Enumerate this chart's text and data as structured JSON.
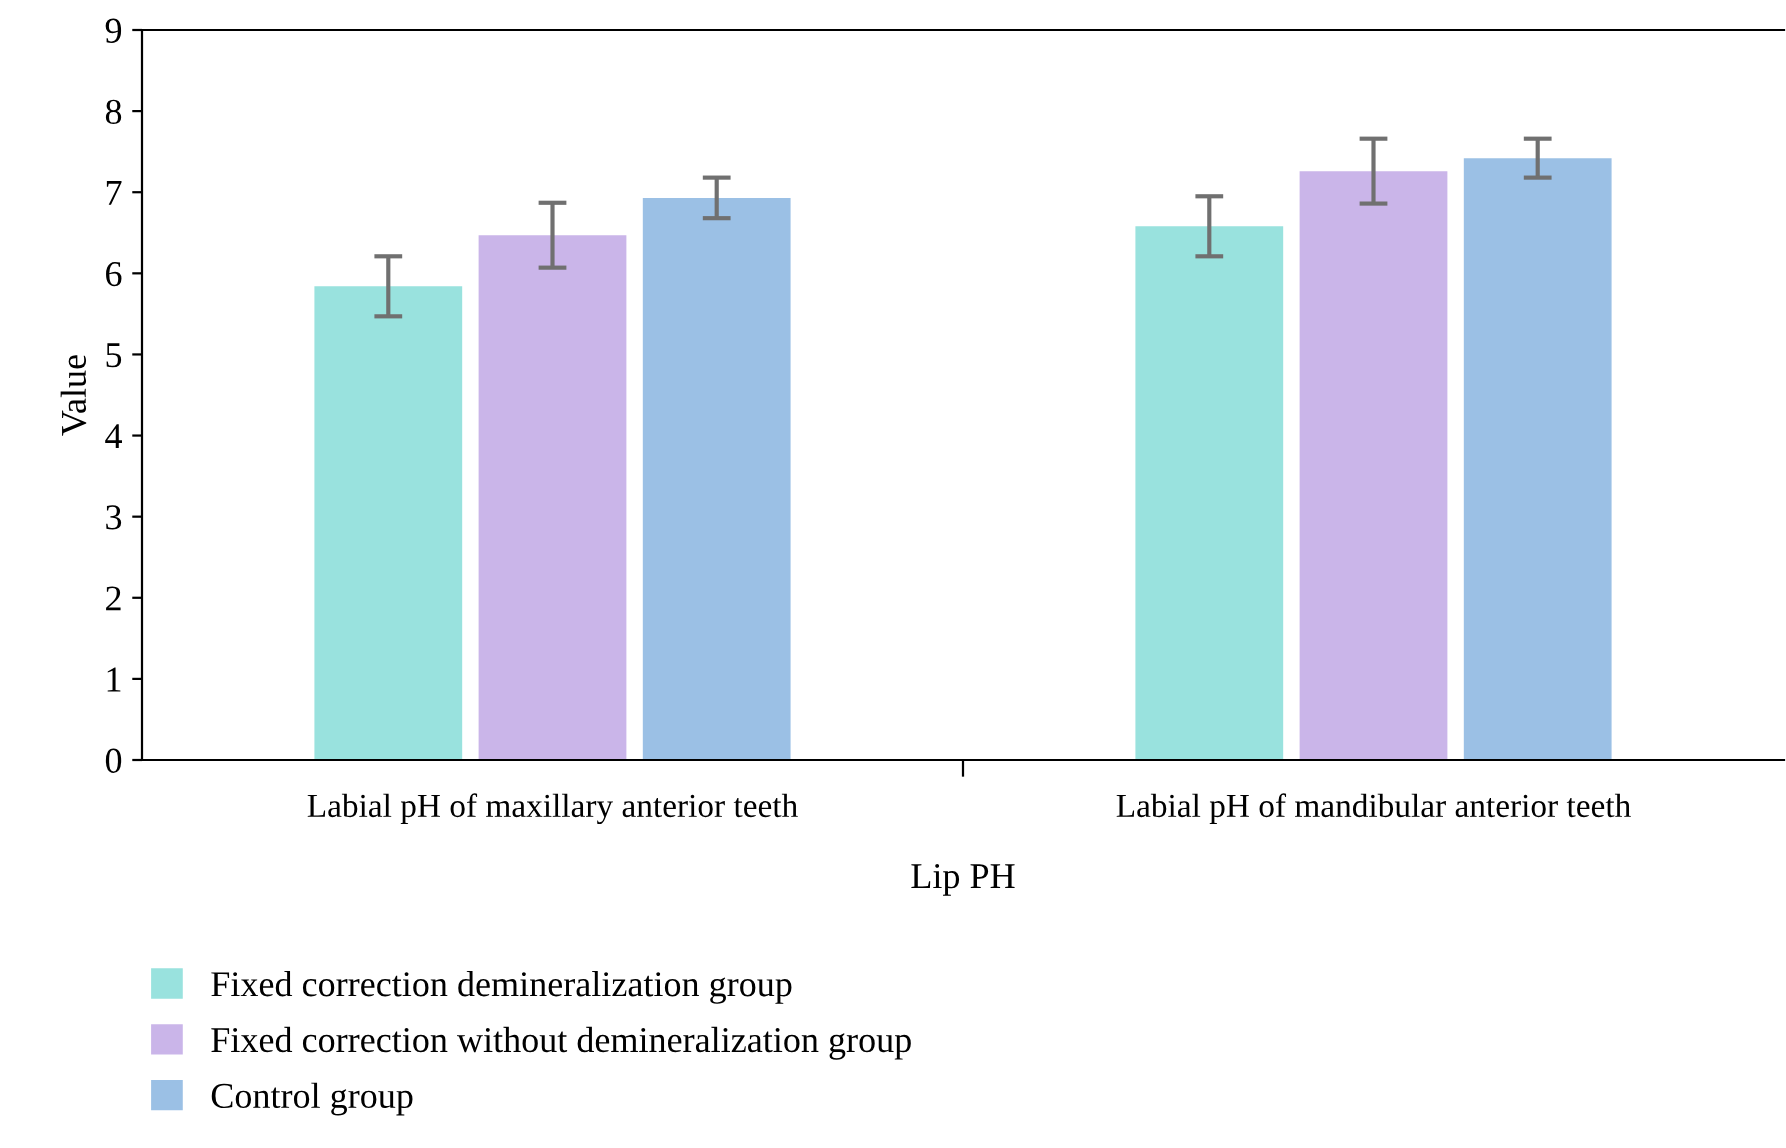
{
  "chart_data": {
    "type": "bar",
    "xlabel": "Lip PH",
    "ylabel": "Value",
    "categories": [
      "Labial pH of maxillary anterior teeth",
      "Labial pH of mandibular anterior teeth"
    ],
    "series": [
      {
        "name": "Fixed correction demineralization group",
        "color": "#99e2de",
        "values": [
          5.84,
          6.58
        ],
        "errors": [
          0.37,
          0.37
        ]
      },
      {
        "name": "Fixed correction without demineralization group",
        "color": "#cab5e9",
        "values": [
          6.47,
          7.26
        ],
        "errors": [
          0.4,
          0.4
        ]
      },
      {
        "name": "Control group",
        "color": "#9bc0e5",
        "values": [
          6.93,
          7.42
        ],
        "errors": [
          0.25,
          0.24
        ]
      }
    ],
    "ylim": [
      0,
      9
    ],
    "yticks": [
      0,
      1,
      2,
      3,
      4,
      5,
      6,
      7,
      8,
      9
    ],
    "grid": false,
    "legend": "bottom"
  }
}
